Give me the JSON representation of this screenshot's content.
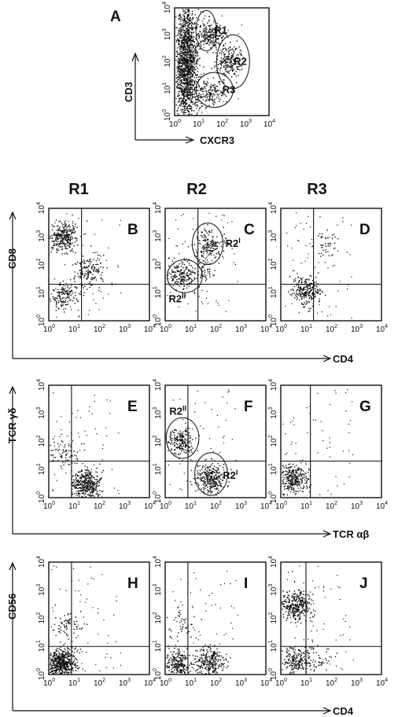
{
  "figure": {
    "column_headers": [
      "R1",
      "R2",
      "R3"
    ],
    "decade_labels": [
      "10",
      "10",
      "10",
      "10",
      "10"
    ],
    "decade_exponents": [
      "0",
      "1",
      "2",
      "3",
      "4"
    ]
  },
  "chart_data": [
    {
      "type": "scatter",
      "panel": "A",
      "xlabel": "CXCR3",
      "ylabel": "CD3",
      "scale": "log",
      "xlim": [
        1,
        10000
      ],
      "ylim": [
        1,
        10000
      ],
      "gates": [
        {
          "name": "R1",
          "x": [
            8,
            60
          ],
          "y": [
            250,
            8000
          ]
        },
        {
          "name": "R2",
          "x": [
            60,
            1500
          ],
          "y": [
            10,
            1000
          ]
        },
        {
          "name": "R3",
          "x": [
            8,
            300
          ],
          "y": [
            2,
            40
          ]
        }
      ],
      "clusters": [
        {
          "x": 3,
          "y": 80,
          "count": 1600
        },
        {
          "x": 30,
          "y": 1000,
          "count": 230
        },
        {
          "x": 200,
          "y": 100,
          "count": 200
        },
        {
          "x": 30,
          "y": 8,
          "count": 160
        }
      ]
    },
    {
      "type": "scatter",
      "panel": "B",
      "gate": "R1",
      "ylabel": "CD8",
      "scale": "log",
      "xlim": [
        1,
        10000
      ],
      "ylim": [
        1,
        10000
      ],
      "quadrant": {
        "x": 20,
        "y": 20
      },
      "clusters": [
        {
          "x": 4,
          "y": 1000,
          "count": 290
        },
        {
          "x": 4,
          "y": 8,
          "count": 150
        },
        {
          "x": 40,
          "y": 60,
          "count": 150
        }
      ]
    },
    {
      "type": "scatter",
      "panel": "C",
      "gate": "R2",
      "scale": "log",
      "xlim": [
        1,
        10000
      ],
      "ylim": [
        1,
        10000
      ],
      "quadrant": {
        "x": 20,
        "y": 20
      },
      "gates": [
        {
          "name": "R2",
          "superscript": "I",
          "x": [
            12,
            200
          ],
          "y": [
            100,
            3000
          ]
        },
        {
          "name": "R2",
          "superscript": "II",
          "x": [
            1.2,
            30
          ],
          "y": [
            10,
            150
          ]
        }
      ],
      "clusters": [
        {
          "x": 50,
          "y": 500,
          "count": 180
        },
        {
          "x": 4,
          "y": 40,
          "count": 180
        },
        {
          "x": 25,
          "y": 60,
          "count": 60
        }
      ]
    },
    {
      "type": "scatter",
      "panel": "D",
      "gate": "R3",
      "scale": "log",
      "xlim": [
        1,
        10000
      ],
      "ylim": [
        1,
        10000
      ],
      "quadrant": {
        "x": 20,
        "y": 20
      },
      "clusters": [
        {
          "x": 10,
          "y": 12,
          "count": 240
        },
        {
          "x": 60,
          "y": 500,
          "count": 40
        }
      ]
    },
    {
      "type": "axis-caption",
      "xlabel": "CD4"
    },
    {
      "type": "scatter",
      "panel": "E",
      "gate": "R1",
      "ylabel": "TCR γδ",
      "scale": "log",
      "xlim": [
        1,
        10000
      ],
      "ylim": [
        1,
        10000
      ],
      "quadrant": {
        "x": 8,
        "y": 20
      },
      "clusters": [
        {
          "x": 30,
          "y": 3,
          "count": 400
        },
        {
          "x": 4,
          "y": 40,
          "count": 70
        }
      ]
    },
    {
      "type": "scatter",
      "panel": "F",
      "gate": "R2",
      "scale": "log",
      "xlim": [
        1,
        10000
      ],
      "ylim": [
        1,
        10000
      ],
      "quadrant": {
        "x": 8,
        "y": 20
      },
      "gates": [
        {
          "name": "R2",
          "superscript": "II",
          "x": [
            1.1,
            22
          ],
          "y": [
            25,
            700
          ]
        },
        {
          "name": "R2",
          "superscript": "I",
          "x": [
            15,
            300
          ],
          "y": [
            1.2,
            40
          ]
        }
      ],
      "clusters": [
        {
          "x": 4,
          "y": 100,
          "count": 200
        },
        {
          "x": 60,
          "y": 5,
          "count": 300
        }
      ]
    },
    {
      "type": "scatter",
      "panel": "G",
      "gate": "R3",
      "scale": "log",
      "xlim": [
        1,
        10000
      ],
      "ylim": [
        1,
        10000
      ],
      "quadrant": {
        "x": 15,
        "y": 20
      },
      "clusters": [
        {
          "x": 3,
          "y": 5,
          "count": 300
        }
      ]
    },
    {
      "type": "axis-caption",
      "xlabel": "TCR αβ"
    },
    {
      "type": "scatter",
      "panel": "H",
      "gate": "R1",
      "ylabel": "CD56",
      "scale": "log",
      "xlim": [
        1,
        10000
      ],
      "ylim": [
        1,
        10000
      ],
      "quadrant": {
        "x": 8,
        "y": 10
      },
      "clusters": [
        {
          "x": 3,
          "y": 2.5,
          "count": 550
        },
        {
          "x": 6,
          "y": 60,
          "count": 70
        }
      ]
    },
    {
      "type": "scatter",
      "panel": "I",
      "gate": "R2",
      "scale": "log",
      "xlim": [
        1,
        10000
      ],
      "ylim": [
        1,
        10000
      ],
      "quadrant": {
        "x": 8,
        "y": 10
      },
      "clusters": [
        {
          "x": 3,
          "y": 2.5,
          "count": 250
        },
        {
          "x": 60,
          "y": 3,
          "count": 260
        },
        {
          "x": 4,
          "y": 60,
          "count": 40
        }
      ]
    },
    {
      "type": "scatter",
      "panel": "J",
      "gate": "R3",
      "scale": "log",
      "xlim": [
        1,
        10000
      ],
      "ylim": [
        1,
        10000
      ],
      "quadrant": {
        "x": 10,
        "y": 10
      },
      "clusters": [
        {
          "x": 4,
          "y": 300,
          "count": 320
        },
        {
          "x": 4,
          "y": 3,
          "count": 200
        },
        {
          "x": 30,
          "y": 4,
          "count": 50
        }
      ]
    },
    {
      "type": "axis-caption",
      "xlabel": "CD4"
    }
  ]
}
